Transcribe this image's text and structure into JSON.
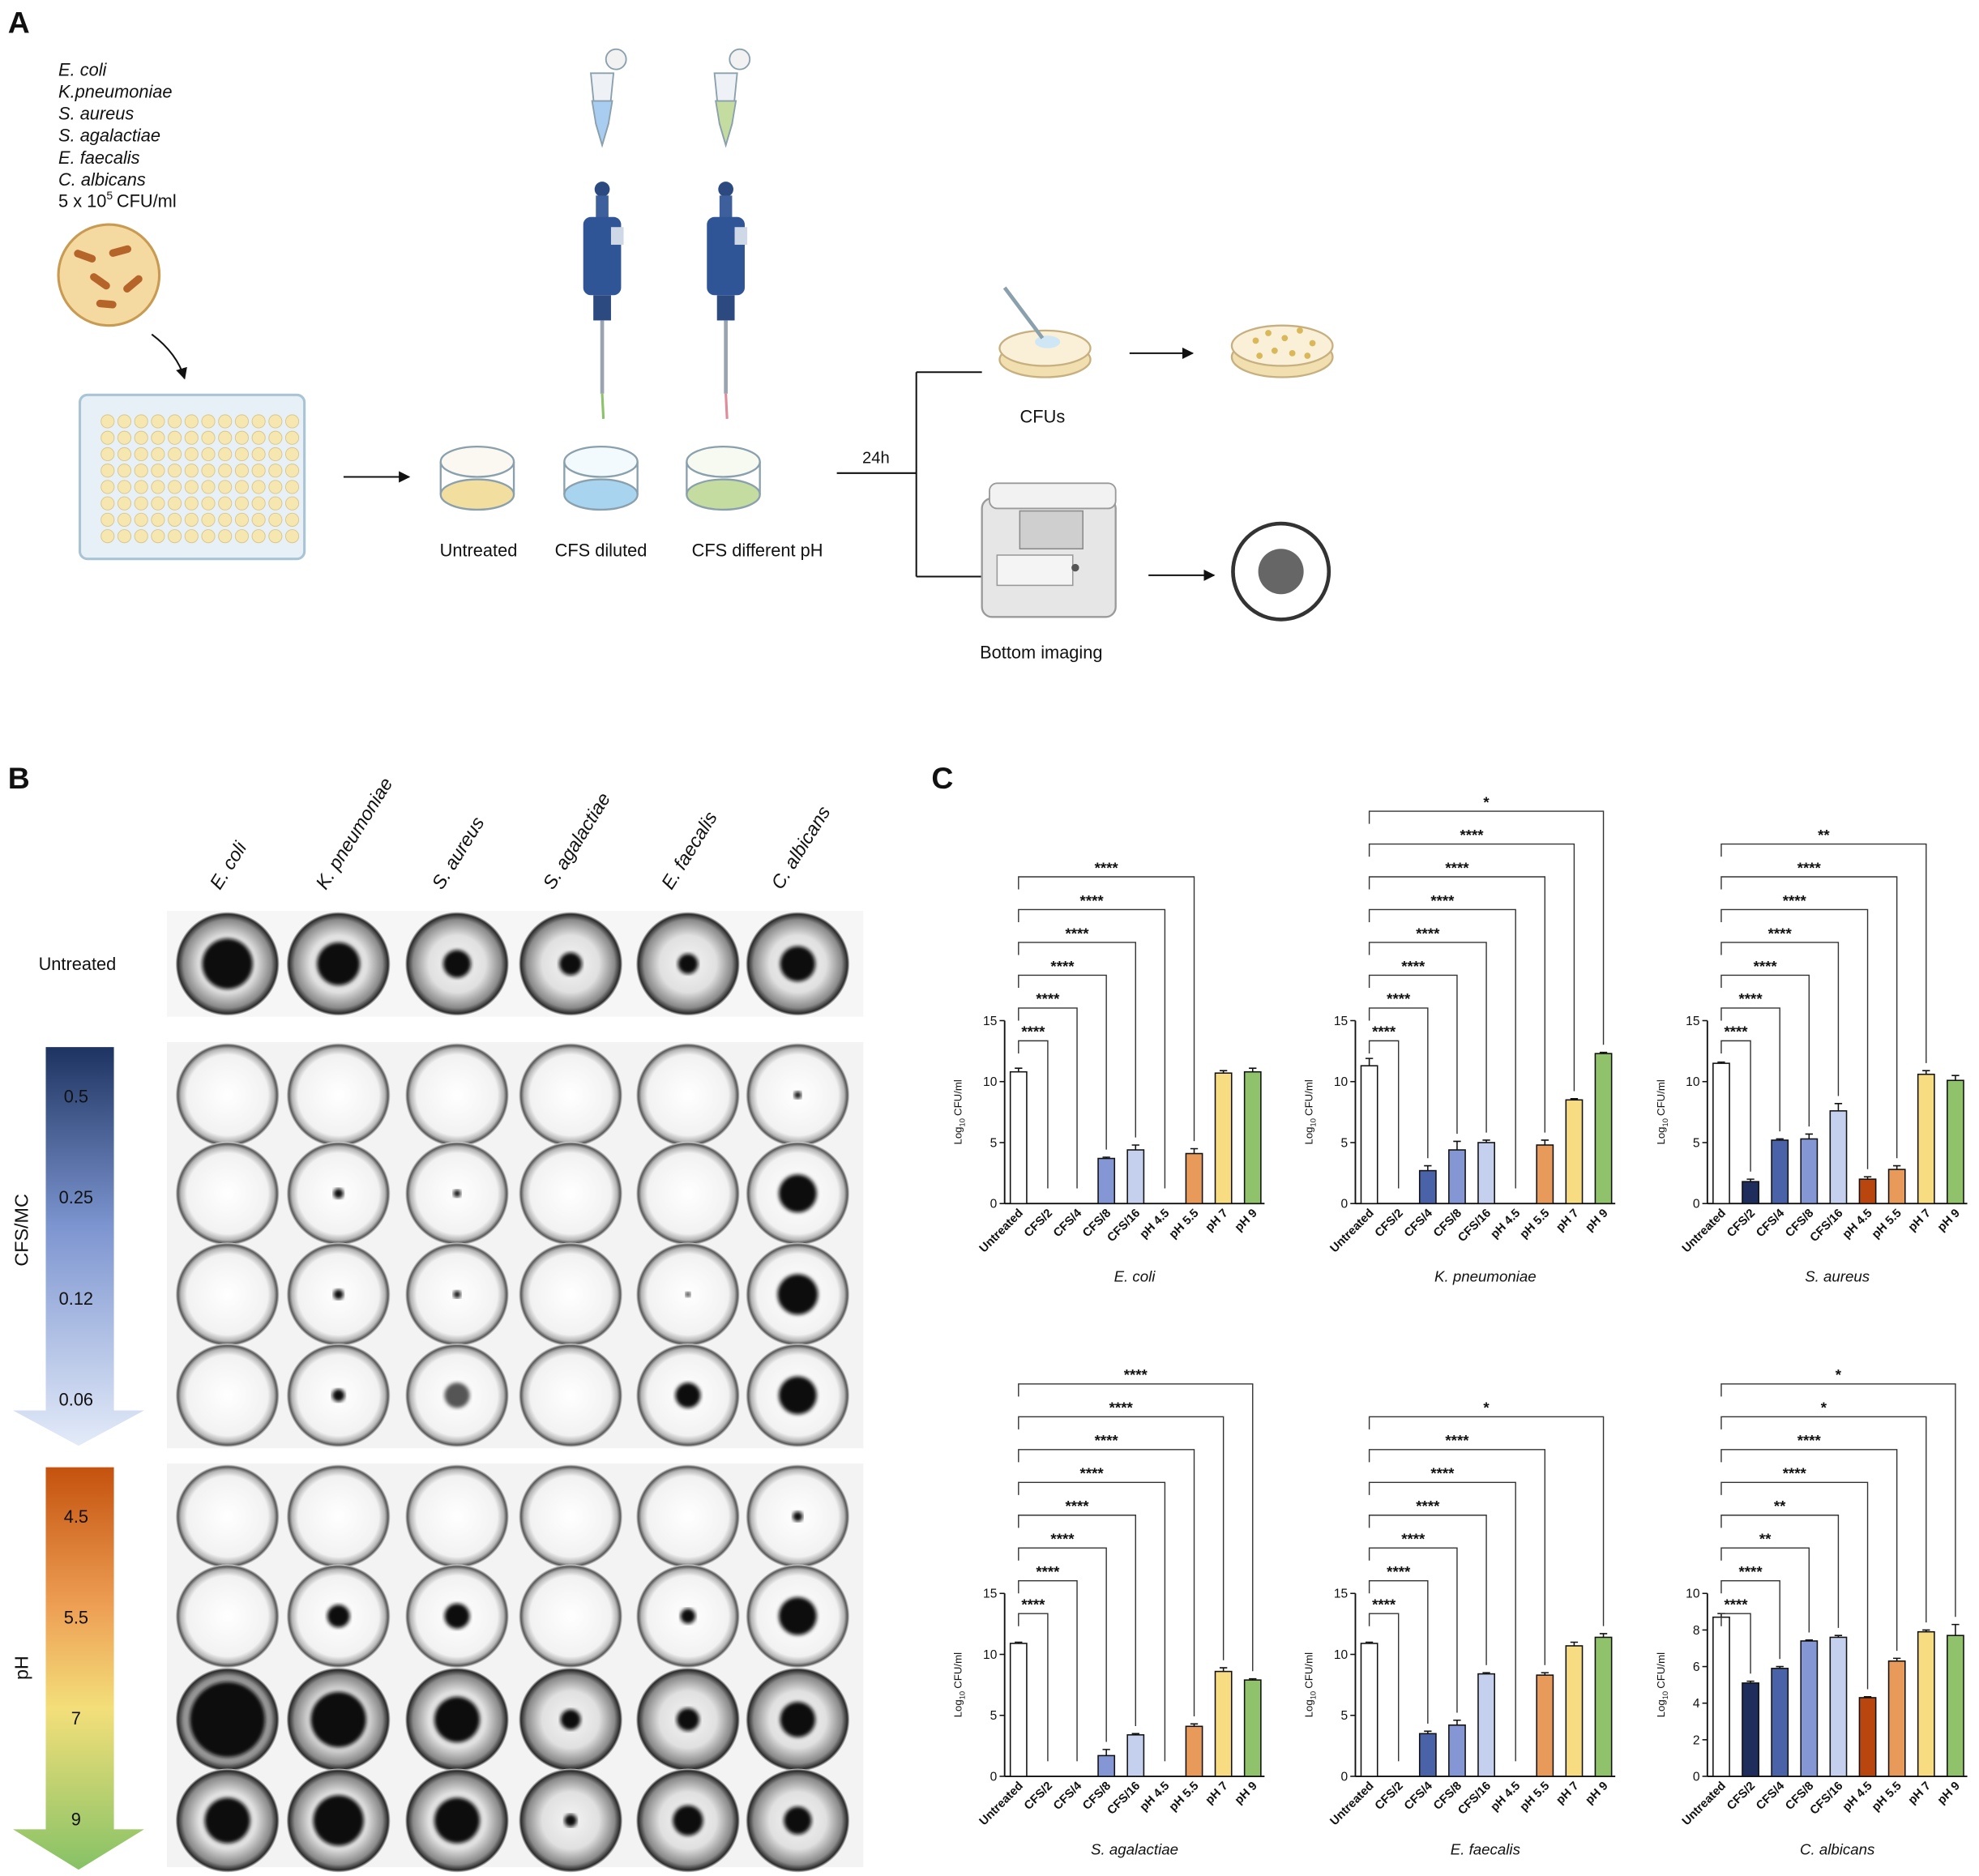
{
  "panel_a": {
    "label": "A",
    "organisms": [
      "E. coli",
      "K.pneumoniae",
      "S. aureus",
      "S. agalactiae",
      "E. faecalis",
      "C. albicans"
    ],
    "inoculum": {
      "base": "5 x 10",
      "exponent": "5",
      "unit": "CFU/ml"
    },
    "conditions": [
      "Untreated",
      "CFS diluted",
      "CFS different pH"
    ],
    "incubation": "24h",
    "readouts": [
      "CFUs",
      "Bottom imaging"
    ]
  },
  "panel_b": {
    "label": "B",
    "organisms": [
      "E. coli",
      "K. pneumoniae",
      "S. aureus",
      "S. agalactiae",
      "E. faecalis",
      "C. albicans"
    ],
    "untreated": "Untreated",
    "cfs_label": "CFS/MC",
    "cfs_levels": [
      0.5,
      0.25,
      0.12,
      0.06
    ],
    "ph_label": "pH",
    "ph_levels": [
      4.5,
      5.5,
      7,
      9
    ]
  },
  "panel_c": {
    "label": "C"
  },
  "chart_data": [
    {
      "type": "bar",
      "title": "E. coli",
      "categories": [
        "Untreated",
        "CFS/2",
        "CFS/4",
        "CFS/8",
        "CFS/16",
        "pH 4.5",
        "pH 5.5",
        "pH 7",
        "pH 9"
      ],
      "values": [
        10.8,
        null,
        null,
        3.7,
        4.4,
        null,
        4.1,
        10.7,
        10.8
      ],
      "errors": [
        0.3,
        null,
        null,
        0.1,
        0.4,
        null,
        0.4,
        0.2,
        0.3
      ],
      "colors": [
        "#ffffff",
        "#1f2d5c",
        "#4a62a8",
        "#8497d4",
        "#c5d0ee",
        "#b8460e",
        "#e89a5a",
        "#f8dc82",
        "#8fc26a"
      ],
      "ylim": [
        0,
        15
      ],
      "yticks": [
        0,
        5,
        10,
        15
      ],
      "y_label": [
        "Log",
        "10",
        "CFU/ml"
      ],
      "comparisons": [
        {
          "to": "CFS/2",
          "label": "****"
        },
        {
          "to": "CFS/4",
          "label": "****"
        },
        {
          "to": "CFS/8",
          "label": "****"
        },
        {
          "to": "CFS/16",
          "label": "****"
        },
        {
          "to": "pH 4.5",
          "label": "****"
        },
        {
          "to": "pH 5.5",
          "label": "****"
        }
      ]
    },
    {
      "type": "bar",
      "title": "K. pneumoniae",
      "categories": [
        "Untreated",
        "CFS/2",
        "CFS/4",
        "CFS/8",
        "CFS/16",
        "pH 4.5",
        "pH 5.5",
        "pH 7",
        "pH 9"
      ],
      "values": [
        11.3,
        null,
        2.7,
        4.4,
        5.0,
        null,
        4.8,
        8.5,
        12.3
      ],
      "errors": [
        0.6,
        null,
        0.4,
        0.7,
        0.2,
        null,
        0.4,
        0.1,
        0.1
      ],
      "colors": [
        "#ffffff",
        "#1f2d5c",
        "#4a62a8",
        "#8497d4",
        "#c5d0ee",
        "#b8460e",
        "#e89a5a",
        "#f8dc82",
        "#8fc26a"
      ],
      "ylim": [
        0,
        15
      ],
      "yticks": [
        0,
        5,
        10,
        15
      ],
      "y_label": [
        "Log",
        "10",
        "CFU/ml"
      ],
      "comparisons": [
        {
          "to": "CFS/2",
          "label": "****"
        },
        {
          "to": "CFS/4",
          "label": "****"
        },
        {
          "to": "CFS/8",
          "label": "****"
        },
        {
          "to": "CFS/16",
          "label": "****"
        },
        {
          "to": "pH 4.5",
          "label": "****"
        },
        {
          "to": "pH 5.5",
          "label": "****"
        },
        {
          "to": "pH 7",
          "label": "****"
        },
        {
          "to": "pH 9",
          "label": "*"
        }
      ]
    },
    {
      "type": "bar",
      "title": "S. aureus",
      "categories": [
        "Untreated",
        "CFS/2",
        "CFS/4",
        "CFS/8",
        "CFS/16",
        "pH 4.5",
        "pH 5.5",
        "pH 7",
        "pH 9"
      ],
      "values": [
        11.5,
        1.8,
        5.2,
        5.3,
        7.6,
        2.0,
        2.8,
        10.6,
        10.1
      ],
      "errors": [
        0.1,
        0.2,
        0.1,
        0.4,
        0.6,
        0.2,
        0.3,
        0.3,
        0.4
      ],
      "colors": [
        "#ffffff",
        "#1f2d5c",
        "#4a62a8",
        "#8497d4",
        "#c5d0ee",
        "#b8460e",
        "#e89a5a",
        "#f8dc82",
        "#8fc26a"
      ],
      "ylim": [
        0,
        15
      ],
      "yticks": [
        0,
        5,
        10,
        15
      ],
      "y_label": [
        "Log",
        "10",
        "CFU/ml"
      ],
      "comparisons": [
        {
          "to": "CFS/2",
          "label": "****"
        },
        {
          "to": "CFS/4",
          "label": "****"
        },
        {
          "to": "CFS/8",
          "label": "****"
        },
        {
          "to": "CFS/16",
          "label": "****"
        },
        {
          "to": "pH 4.5",
          "label": "****"
        },
        {
          "to": "pH 5.5",
          "label": "****"
        },
        {
          "to": "pH 7",
          "label": "**"
        }
      ]
    },
    {
      "type": "bar",
      "title": "S. agalactiae",
      "categories": [
        "Untreated",
        "CFS/2",
        "CFS/4",
        "CFS/8",
        "CFS/16",
        "pH 4.5",
        "pH 5.5",
        "pH 7",
        "pH 9"
      ],
      "values": [
        10.9,
        null,
        null,
        1.7,
        3.4,
        null,
        4.1,
        8.6,
        7.9
      ],
      "errors": [
        0.1,
        null,
        null,
        0.5,
        0.1,
        null,
        0.2,
        0.3,
        0.1
      ],
      "colors": [
        "#ffffff",
        "#1f2d5c",
        "#4a62a8",
        "#8497d4",
        "#c5d0ee",
        "#b8460e",
        "#e89a5a",
        "#f8dc82",
        "#8fc26a"
      ],
      "ylim": [
        0,
        15
      ],
      "yticks": [
        0,
        5,
        10,
        15
      ],
      "y_label": [
        "Log",
        "10",
        "CFU/ml"
      ],
      "comparisons": [
        {
          "to": "CFS/2",
          "label": "****"
        },
        {
          "to": "CFS/4",
          "label": "****"
        },
        {
          "to": "CFS/8",
          "label": "****"
        },
        {
          "to": "CFS/16",
          "label": "****"
        },
        {
          "to": "pH 4.5",
          "label": "****"
        },
        {
          "to": "pH 5.5",
          "label": "****"
        },
        {
          "to": "pH 7",
          "label": "****"
        },
        {
          "to": "pH 9",
          "label": "****"
        }
      ]
    },
    {
      "type": "bar",
      "title": "E. faecalis",
      "categories": [
        "Untreated",
        "CFS/2",
        "CFS/4",
        "CFS/8",
        "CFS/16",
        "pH 4.5",
        "pH 5.5",
        "pH 7",
        "pH 9"
      ],
      "values": [
        10.9,
        null,
        3.5,
        4.2,
        8.4,
        null,
        8.3,
        10.7,
        11.4
      ],
      "errors": [
        0.1,
        null,
        0.2,
        0.4,
        0.1,
        null,
        0.2,
        0.3,
        0.3
      ],
      "colors": [
        "#ffffff",
        "#1f2d5c",
        "#4a62a8",
        "#8497d4",
        "#c5d0ee",
        "#b8460e",
        "#e89a5a",
        "#f8dc82",
        "#8fc26a"
      ],
      "ylim": [
        0,
        15
      ],
      "yticks": [
        0,
        5,
        10,
        15
      ],
      "y_label": [
        "Log",
        "10",
        "CFU/ml"
      ],
      "comparisons": [
        {
          "to": "CFS/2",
          "label": "****"
        },
        {
          "to": "CFS/4",
          "label": "****"
        },
        {
          "to": "CFS/8",
          "label": "****"
        },
        {
          "to": "CFS/16",
          "label": "****"
        },
        {
          "to": "pH 4.5",
          "label": "****"
        },
        {
          "to": "pH 5.5",
          "label": "****"
        },
        {
          "to": "pH 9",
          "label": "*"
        }
      ]
    },
    {
      "type": "bar",
      "title": "C. albicans",
      "categories": [
        "Untreated",
        "CFS/2",
        "CFS/4",
        "CFS/8",
        "CFS/16",
        "pH 4.5",
        "pH 5.5",
        "pH 7",
        "pH 9"
      ],
      "values": [
        8.7,
        5.1,
        5.9,
        7.4,
        7.6,
        4.3,
        6.3,
        7.9,
        7.7
      ],
      "errors": [
        0.2,
        0.1,
        0.1,
        0.05,
        0.1,
        0.05,
        0.15,
        0.1,
        0.6
      ],
      "colors": [
        "#ffffff",
        "#1f2d5c",
        "#4a62a8",
        "#8497d4",
        "#c5d0ee",
        "#b8460e",
        "#e89a5a",
        "#f8dc82",
        "#8fc26a"
      ],
      "ylim": [
        0,
        10
      ],
      "yticks": [
        0,
        2,
        4,
        6,
        8,
        10
      ],
      "y_label": [
        "Log",
        "10",
        "CFU/ml"
      ],
      "comparisons": [
        {
          "to": "CFS/2",
          "label": "****"
        },
        {
          "to": "CFS/4",
          "label": "****"
        },
        {
          "to": "CFS/8",
          "label": "**"
        },
        {
          "to": "CFS/16",
          "label": "**"
        },
        {
          "to": "pH 4.5",
          "label": "****"
        },
        {
          "to": "pH 5.5",
          "label": "****"
        },
        {
          "to": "pH 7",
          "label": "*"
        },
        {
          "to": "pH 9",
          "label": "*"
        }
      ]
    }
  ]
}
